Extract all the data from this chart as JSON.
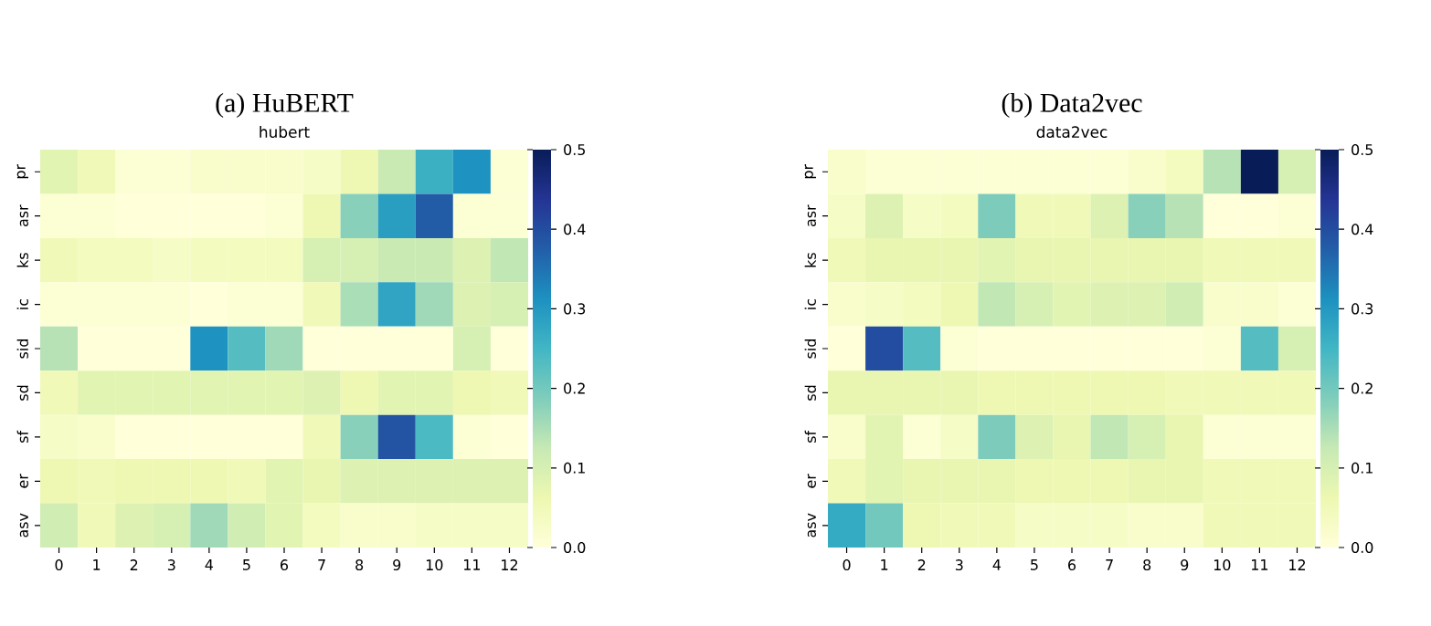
{
  "chart_data": [
    {
      "type": "heatmap",
      "title": "(a) HuBERT",
      "subtitle": "hubert",
      "categories": [
        "0",
        "1",
        "2",
        "3",
        "4",
        "5",
        "6",
        "7",
        "8",
        "9",
        "10",
        "11",
        "12"
      ],
      "y_categories": [
        "pr",
        "asr",
        "ks",
        "ic",
        "sid",
        "sd",
        "sf",
        "er",
        "asv"
      ],
      "cells": [
        [
          0.08,
          0.05,
          0.01,
          0.01,
          0.02,
          0.02,
          0.02,
          0.03,
          0.06,
          0.12,
          0.26,
          0.31,
          0.01
        ],
        [
          0.01,
          0.01,
          0.0,
          0.0,
          0.0,
          0.0,
          0.01,
          0.06,
          0.18,
          0.29,
          0.38,
          0.01,
          0.01
        ],
        [
          0.05,
          0.04,
          0.04,
          0.03,
          0.04,
          0.04,
          0.04,
          0.1,
          0.1,
          0.12,
          0.12,
          0.09,
          0.13
        ],
        [
          0.01,
          0.01,
          0.01,
          0.01,
          0.0,
          0.01,
          0.01,
          0.05,
          0.15,
          0.28,
          0.16,
          0.09,
          0.1
        ],
        [
          0.14,
          0.0,
          0.0,
          0.0,
          0.31,
          0.23,
          0.16,
          0.0,
          0.0,
          0.0,
          0.0,
          0.1,
          0.0
        ],
        [
          0.05,
          0.08,
          0.08,
          0.08,
          0.08,
          0.08,
          0.08,
          0.09,
          0.06,
          0.08,
          0.08,
          0.06,
          0.05
        ],
        [
          0.03,
          0.02,
          0.0,
          0.0,
          0.0,
          0.0,
          0.0,
          0.05,
          0.18,
          0.39,
          0.24,
          0.01,
          0.0
        ],
        [
          0.06,
          0.05,
          0.06,
          0.06,
          0.06,
          0.05,
          0.08,
          0.07,
          0.09,
          0.09,
          0.09,
          0.09,
          0.09
        ],
        [
          0.11,
          0.05,
          0.09,
          0.1,
          0.16,
          0.11,
          0.08,
          0.04,
          0.02,
          0.02,
          0.03,
          0.03,
          0.03
        ]
      ],
      "clim": [
        0,
        0.5
      ],
      "cticks": [
        {
          "value": 0,
          "label": "0.0"
        },
        {
          "value": 0.1,
          "label": "0.1"
        },
        {
          "value": 0.2,
          "label": "0.2"
        },
        {
          "value": 0.3,
          "label": "0.3"
        },
        {
          "value": 0.4,
          "label": "0.4"
        },
        {
          "value": 0.5,
          "label": "0.5"
        }
      ]
    },
    {
      "type": "heatmap",
      "title": "(b) Data2vec",
      "subtitle": "data2vec",
      "categories": [
        "0",
        "1",
        "2",
        "3",
        "4",
        "5",
        "6",
        "7",
        "8",
        "9",
        "10",
        "11",
        "12"
      ],
      "y_categories": [
        "pr",
        "asr",
        "ks",
        "ic",
        "sid",
        "sd",
        "sf",
        "er",
        "asv"
      ],
      "cells": [
        [
          0.02,
          0.01,
          0.01,
          0.01,
          0.01,
          0.01,
          0.01,
          0.01,
          0.02,
          0.04,
          0.14,
          0.5,
          0.1
        ],
        [
          0.03,
          0.09,
          0.03,
          0.04,
          0.19,
          0.05,
          0.05,
          0.09,
          0.18,
          0.14,
          0.0,
          0.0,
          0.01
        ],
        [
          0.05,
          0.07,
          0.07,
          0.07,
          0.08,
          0.07,
          0.07,
          0.07,
          0.07,
          0.07,
          0.05,
          0.05,
          0.05
        ],
        [
          0.02,
          0.03,
          0.04,
          0.06,
          0.13,
          0.1,
          0.08,
          0.09,
          0.09,
          0.11,
          0.02,
          0.02,
          0.01
        ],
        [
          0.0,
          0.4,
          0.23,
          0.01,
          0.0,
          0.0,
          0.0,
          0.0,
          0.0,
          0.0,
          0.01,
          0.23,
          0.1
        ],
        [
          0.07,
          0.07,
          0.07,
          0.07,
          0.06,
          0.06,
          0.06,
          0.06,
          0.06,
          0.05,
          0.05,
          0.05,
          0.05
        ],
        [
          0.02,
          0.08,
          0.01,
          0.03,
          0.19,
          0.09,
          0.07,
          0.13,
          0.1,
          0.07,
          0.01,
          0.01,
          0.01
        ],
        [
          0.05,
          0.08,
          0.07,
          0.07,
          0.07,
          0.06,
          0.06,
          0.06,
          0.07,
          0.07,
          0.05,
          0.05,
          0.05
        ],
        [
          0.27,
          0.2,
          0.06,
          0.05,
          0.05,
          0.03,
          0.03,
          0.03,
          0.02,
          0.02,
          0.05,
          0.05,
          0.05
        ]
      ],
      "clim": [
        0,
        0.5
      ],
      "cticks": [
        {
          "value": 0,
          "label": "0.0"
        },
        {
          "value": 0.1,
          "label": "0.1"
        },
        {
          "value": 0.2,
          "label": "0.2"
        },
        {
          "value": 0.3,
          "label": "0.3"
        },
        {
          "value": 0.4,
          "label": "0.4"
        },
        {
          "value": 0.5,
          "label": "0.5"
        }
      ]
    }
  ]
}
